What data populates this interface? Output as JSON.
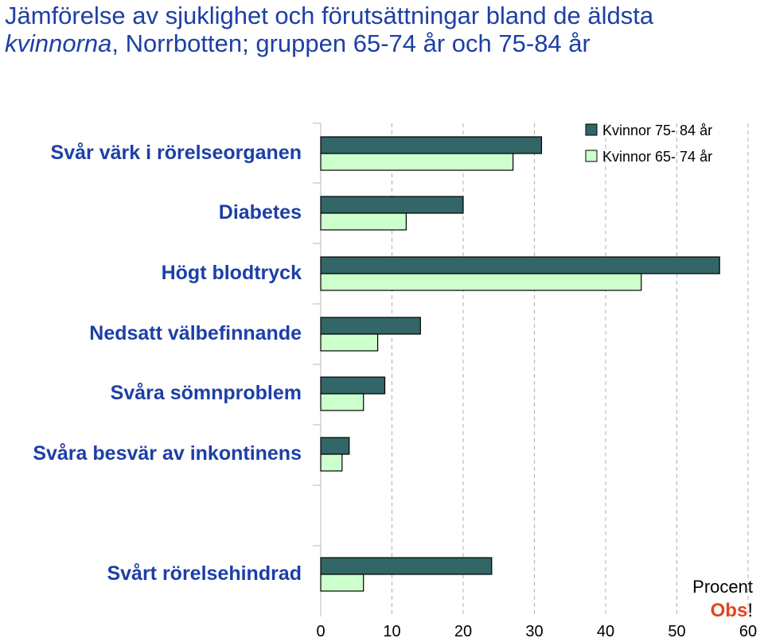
{
  "title": {
    "part1": "Jämförelse av sjuklighet och förutsättningar bland de äldsta ",
    "italic": "kvinnorna",
    "part2": ", Norrbotten; gruppen 65-74 år och 75-84 år"
  },
  "chart_data": {
    "type": "bar",
    "orientation": "horizontal",
    "categories": [
      "Svår värk i rörelseorganen",
      "Diabetes",
      "Högt blodtryck",
      "Nedsatt välbefinnande",
      "Svåra sömnproblem",
      "Svåra besvär av inkontinens",
      "Svårt rörelsehindrad"
    ],
    "series": [
      {
        "name": "Kvinnor 75- 84 år",
        "color": "#336666",
        "values": [
          31,
          20,
          56,
          14,
          9,
          4,
          24
        ]
      },
      {
        "name": "Kvinnor 65- 74 år",
        "color": "#ccffcc",
        "values": [
          27,
          12,
          45,
          8,
          6,
          3,
          6
        ]
      }
    ],
    "xlim": [
      0,
      60
    ],
    "xticks": [
      "0",
      "10",
      "20",
      "30",
      "40",
      "50",
      "60"
    ],
    "xlabel": "Procent",
    "grid": "vertical-dashed",
    "legend": "top-right"
  },
  "note": {
    "obs": "Obs",
    "bang": "!"
  }
}
